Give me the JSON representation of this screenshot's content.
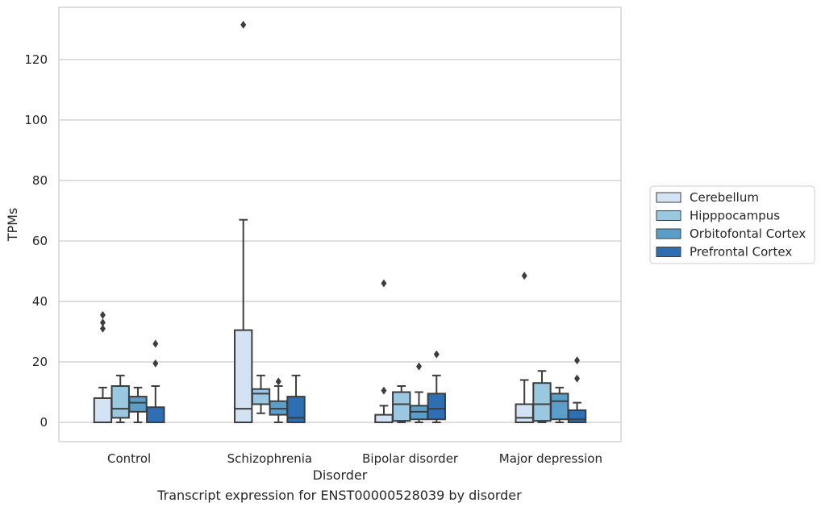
{
  "caption": "Transcript expression for ENST00000528039 by disorder",
  "chart_data": {
    "type": "box",
    "xlabel": "Disorder",
    "ylabel": "TPMs",
    "ylim": [
      -6.4,
      137.3
    ],
    "yticks": [
      0,
      20,
      40,
      60,
      80,
      100,
      120
    ],
    "grid": "horizontal",
    "legend_position": "right, outside",
    "categories": [
      "Control",
      "Schizophrenia",
      "Bipolar disorder",
      "Major depression"
    ],
    "series": [
      {
        "name": "Cerebellum",
        "color": "#d3e3f3",
        "boxes": [
          {
            "whisker_low": 0,
            "q1": 0,
            "median": 0,
            "q3": 8,
            "whisker_high": 11.5,
            "outliers": [
              31,
              33,
              35.5
            ]
          },
          {
            "whisker_low": 0,
            "q1": 0,
            "median": 4.5,
            "q3": 30.5,
            "whisker_high": 67,
            "outliers": [
              131.5
            ]
          },
          {
            "whisker_low": 0,
            "q1": 0,
            "median": 0,
            "q3": 2.5,
            "whisker_high": 5.5,
            "outliers": [
              10.5,
              46
            ]
          },
          {
            "whisker_low": 0,
            "q1": 0,
            "median": 1.5,
            "q3": 6,
            "whisker_high": 14,
            "outliers": [
              48.5
            ]
          }
        ]
      },
      {
        "name": "Hipppocampus",
        "color": "#9ac8e0",
        "boxes": [
          {
            "whisker_low": 0,
            "q1": 1.5,
            "median": 4.5,
            "q3": 12,
            "whisker_high": 15.5,
            "outliers": []
          },
          {
            "whisker_low": 3,
            "q1": 6,
            "median": 9.5,
            "q3": 11,
            "whisker_high": 15.5,
            "outliers": []
          },
          {
            "whisker_low": 0,
            "q1": 0.5,
            "median": 6,
            "q3": 10,
            "whisker_high": 12,
            "outliers": []
          },
          {
            "whisker_low": 0,
            "q1": 0.5,
            "median": 6,
            "q3": 13,
            "whisker_high": 17,
            "outliers": []
          }
        ]
      },
      {
        "name": "Orbitofontal Cortex",
        "color": "#5a9ec9",
        "boxes": [
          {
            "whisker_low": 0,
            "q1": 3.5,
            "median": 6.5,
            "q3": 8.5,
            "whisker_high": 11.5,
            "outliers": []
          },
          {
            "whisker_low": 0,
            "q1": 2.5,
            "median": 4.5,
            "q3": 7,
            "whisker_high": 12,
            "outliers": [
              13.5
            ]
          },
          {
            "whisker_low": 0,
            "q1": 1,
            "median": 3.5,
            "q3": 5.5,
            "whisker_high": 10,
            "outliers": [
              18.5
            ]
          },
          {
            "whisker_low": 0,
            "q1": 1,
            "median": 7,
            "q3": 9.5,
            "whisker_high": 11.5,
            "outliers": []
          }
        ]
      },
      {
        "name": "Prefrontal Cortex",
        "color": "#2d6fb2",
        "boxes": [
          {
            "whisker_low": 0,
            "q1": 0,
            "median": 0,
            "q3": 5,
            "whisker_high": 12,
            "outliers": [
              19.5,
              26
            ]
          },
          {
            "whisker_low": 0,
            "q1": 0,
            "median": 1.5,
            "q3": 8.5,
            "whisker_high": 15.5,
            "outliers": []
          },
          {
            "whisker_low": 0,
            "q1": 1,
            "median": 4.5,
            "q3": 9.5,
            "whisker_high": 15.5,
            "outliers": [
              22.5
            ]
          },
          {
            "whisker_low": 0,
            "q1": 0,
            "median": 1,
            "q3": 4,
            "whisker_high": 6.5,
            "outliers": [
              14.5,
              20.5
            ]
          }
        ]
      }
    ]
  }
}
